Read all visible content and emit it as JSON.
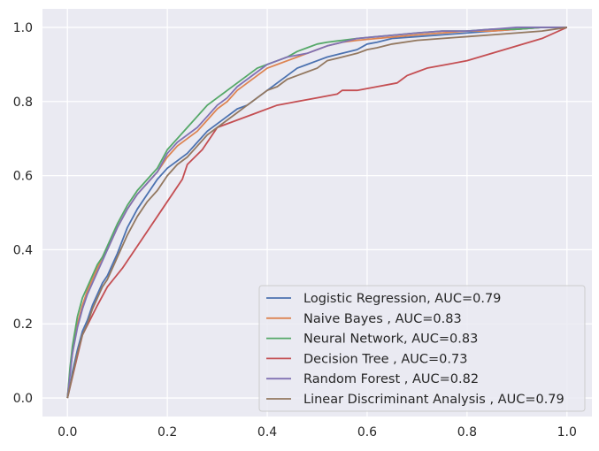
{
  "chart_data": {
    "type": "line",
    "title": "",
    "xlabel": "",
    "ylabel": "",
    "xlim": [
      -0.05,
      1.05
    ],
    "ylim": [
      -0.05,
      1.05
    ],
    "xticks": [
      0.0,
      0.2,
      0.4,
      0.6,
      0.8,
      1.0
    ],
    "yticks": [
      0.0,
      0.2,
      0.4,
      0.6,
      0.8,
      1.0
    ],
    "xtick_labels": [
      "0.0",
      "0.2",
      "0.4",
      "0.6",
      "0.8",
      "1.0"
    ],
    "ytick_labels": [
      "0.0",
      "0.2",
      "0.4",
      "0.6",
      "0.8",
      "1.0"
    ],
    "grid": true,
    "background": "#eaeaf2",
    "legend_position": "lower-right",
    "series": [
      {
        "name": "Logistic Regression, AUC=0.79",
        "color": "#4c72b0",
        "x": [
          0,
          0.005,
          0.01,
          0.015,
          0.02,
          0.03,
          0.04,
          0.05,
          0.06,
          0.07,
          0.08,
          0.09,
          0.1,
          0.12,
          0.14,
          0.16,
          0.18,
          0.2,
          0.22,
          0.24,
          0.26,
          0.28,
          0.3,
          0.32,
          0.34,
          0.36,
          0.38,
          0.4,
          0.42,
          0.44,
          0.46,
          0.48,
          0.5,
          0.52,
          0.55,
          0.58,
          0.6,
          0.62,
          0.65,
          0.7,
          0.75,
          0.8,
          0.85,
          0.9,
          0.95,
          1.0
        ],
        "y": [
          0,
          0.03,
          0.07,
          0.1,
          0.13,
          0.18,
          0.21,
          0.25,
          0.28,
          0.31,
          0.33,
          0.36,
          0.39,
          0.46,
          0.51,
          0.55,
          0.59,
          0.62,
          0.64,
          0.66,
          0.69,
          0.72,
          0.74,
          0.76,
          0.78,
          0.79,
          0.81,
          0.83,
          0.85,
          0.87,
          0.89,
          0.9,
          0.91,
          0.92,
          0.93,
          0.94,
          0.955,
          0.96,
          0.97,
          0.975,
          0.98,
          0.985,
          0.99,
          0.995,
          1.0,
          1.0
        ]
      },
      {
        "name": "Naive Bayes , AUC=0.83",
        "color": "#dd8452",
        "x": [
          0,
          0.005,
          0.01,
          0.02,
          0.03,
          0.04,
          0.05,
          0.06,
          0.07,
          0.08,
          0.1,
          0.12,
          0.14,
          0.16,
          0.18,
          0.2,
          0.22,
          0.24,
          0.26,
          0.28,
          0.3,
          0.32,
          0.34,
          0.36,
          0.38,
          0.4,
          0.42,
          0.44,
          0.46,
          0.48,
          0.5,
          0.52,
          0.55,
          0.58,
          0.62,
          0.66,
          0.7,
          0.75,
          0.8,
          0.85,
          0.9,
          0.95,
          1.0
        ],
        "y": [
          0,
          0.07,
          0.12,
          0.2,
          0.25,
          0.29,
          0.32,
          0.35,
          0.38,
          0.4,
          0.46,
          0.51,
          0.55,
          0.58,
          0.61,
          0.65,
          0.68,
          0.7,
          0.72,
          0.75,
          0.78,
          0.8,
          0.83,
          0.85,
          0.87,
          0.89,
          0.9,
          0.91,
          0.92,
          0.93,
          0.94,
          0.95,
          0.96,
          0.965,
          0.97,
          0.975,
          0.98,
          0.985,
          0.99,
          0.99,
          0.995,
          1.0,
          1.0
        ]
      },
      {
        "name": "Neural Network, AUC=0.83",
        "color": "#55a868",
        "x": [
          0,
          0.005,
          0.01,
          0.02,
          0.03,
          0.04,
          0.05,
          0.06,
          0.07,
          0.08,
          0.1,
          0.12,
          0.14,
          0.16,
          0.18,
          0.2,
          0.22,
          0.24,
          0.26,
          0.28,
          0.3,
          0.32,
          0.34,
          0.36,
          0.38,
          0.4,
          0.42,
          0.44,
          0.46,
          0.48,
          0.5,
          0.52,
          0.55,
          0.58,
          0.62,
          0.66,
          0.7,
          0.75,
          0.8,
          0.85,
          0.9,
          0.95,
          1.0
        ],
        "y": [
          0,
          0.08,
          0.14,
          0.22,
          0.27,
          0.3,
          0.33,
          0.36,
          0.38,
          0.41,
          0.47,
          0.52,
          0.56,
          0.59,
          0.62,
          0.67,
          0.7,
          0.73,
          0.76,
          0.79,
          0.81,
          0.83,
          0.85,
          0.87,
          0.89,
          0.9,
          0.91,
          0.92,
          0.935,
          0.945,
          0.955,
          0.96,
          0.965,
          0.97,
          0.975,
          0.98,
          0.985,
          0.99,
          0.99,
          0.995,
          0.995,
          1.0,
          1.0
        ]
      },
      {
        "name": "Decision Tree , AUC=0.73",
        "color": "#c44e52",
        "x": [
          0,
          0.03,
          0.06,
          0.08,
          0.11,
          0.15,
          0.19,
          0.23,
          0.24,
          0.27,
          0.3,
          0.34,
          0.38,
          0.42,
          0.46,
          0.5,
          0.54,
          0.55,
          0.58,
          0.62,
          0.66,
          0.67,
          0.68,
          0.7,
          0.72,
          0.76,
          0.8,
          0.85,
          0.9,
          0.95,
          1.0
        ],
        "y": [
          0,
          0.17,
          0.25,
          0.3,
          0.35,
          0.43,
          0.51,
          0.59,
          0.63,
          0.67,
          0.73,
          0.75,
          0.77,
          0.79,
          0.8,
          0.81,
          0.82,
          0.83,
          0.83,
          0.84,
          0.85,
          0.86,
          0.87,
          0.88,
          0.89,
          0.9,
          0.91,
          0.93,
          0.95,
          0.97,
          1.0
        ]
      },
      {
        "name": "Random Forest , AUC=0.82",
        "color": "#8172b3",
        "x": [
          0,
          0.005,
          0.01,
          0.02,
          0.03,
          0.04,
          0.05,
          0.06,
          0.07,
          0.08,
          0.1,
          0.12,
          0.14,
          0.16,
          0.18,
          0.2,
          0.22,
          0.24,
          0.26,
          0.28,
          0.3,
          0.32,
          0.34,
          0.36,
          0.38,
          0.4,
          0.42,
          0.44,
          0.46,
          0.48,
          0.5,
          0.52,
          0.55,
          0.58,
          0.62,
          0.66,
          0.7,
          0.75,
          0.8,
          0.85,
          0.9,
          0.95,
          1.0
        ],
        "y": [
          0,
          0.06,
          0.12,
          0.19,
          0.24,
          0.28,
          0.31,
          0.34,
          0.37,
          0.4,
          0.46,
          0.51,
          0.55,
          0.58,
          0.61,
          0.66,
          0.69,
          0.71,
          0.73,
          0.76,
          0.79,
          0.81,
          0.84,
          0.86,
          0.88,
          0.9,
          0.91,
          0.92,
          0.925,
          0.93,
          0.94,
          0.95,
          0.96,
          0.97,
          0.975,
          0.98,
          0.985,
          0.99,
          0.99,
          0.995,
          1.0,
          1.0,
          1.0
        ]
      },
      {
        "name": "Linear Discriminant Analysis , AUC=0.79",
        "color": "#937860",
        "x": [
          0,
          0.005,
          0.01,
          0.015,
          0.02,
          0.03,
          0.04,
          0.05,
          0.06,
          0.07,
          0.08,
          0.09,
          0.1,
          0.12,
          0.14,
          0.16,
          0.18,
          0.2,
          0.22,
          0.24,
          0.26,
          0.28,
          0.3,
          0.32,
          0.34,
          0.36,
          0.38,
          0.4,
          0.42,
          0.44,
          0.46,
          0.48,
          0.5,
          0.52,
          0.55,
          0.58,
          0.6,
          0.62,
          0.65,
          0.7,
          0.75,
          0.8,
          0.85,
          0.9,
          0.95,
          1.0
        ],
        "y": [
          0,
          0.03,
          0.06,
          0.09,
          0.12,
          0.17,
          0.2,
          0.24,
          0.27,
          0.3,
          0.32,
          0.35,
          0.38,
          0.44,
          0.49,
          0.53,
          0.56,
          0.6,
          0.63,
          0.65,
          0.68,
          0.71,
          0.73,
          0.75,
          0.77,
          0.79,
          0.81,
          0.83,
          0.84,
          0.86,
          0.87,
          0.88,
          0.89,
          0.91,
          0.92,
          0.93,
          0.94,
          0.945,
          0.955,
          0.965,
          0.97,
          0.975,
          0.98,
          0.985,
          0.99,
          1.0
        ]
      }
    ]
  }
}
